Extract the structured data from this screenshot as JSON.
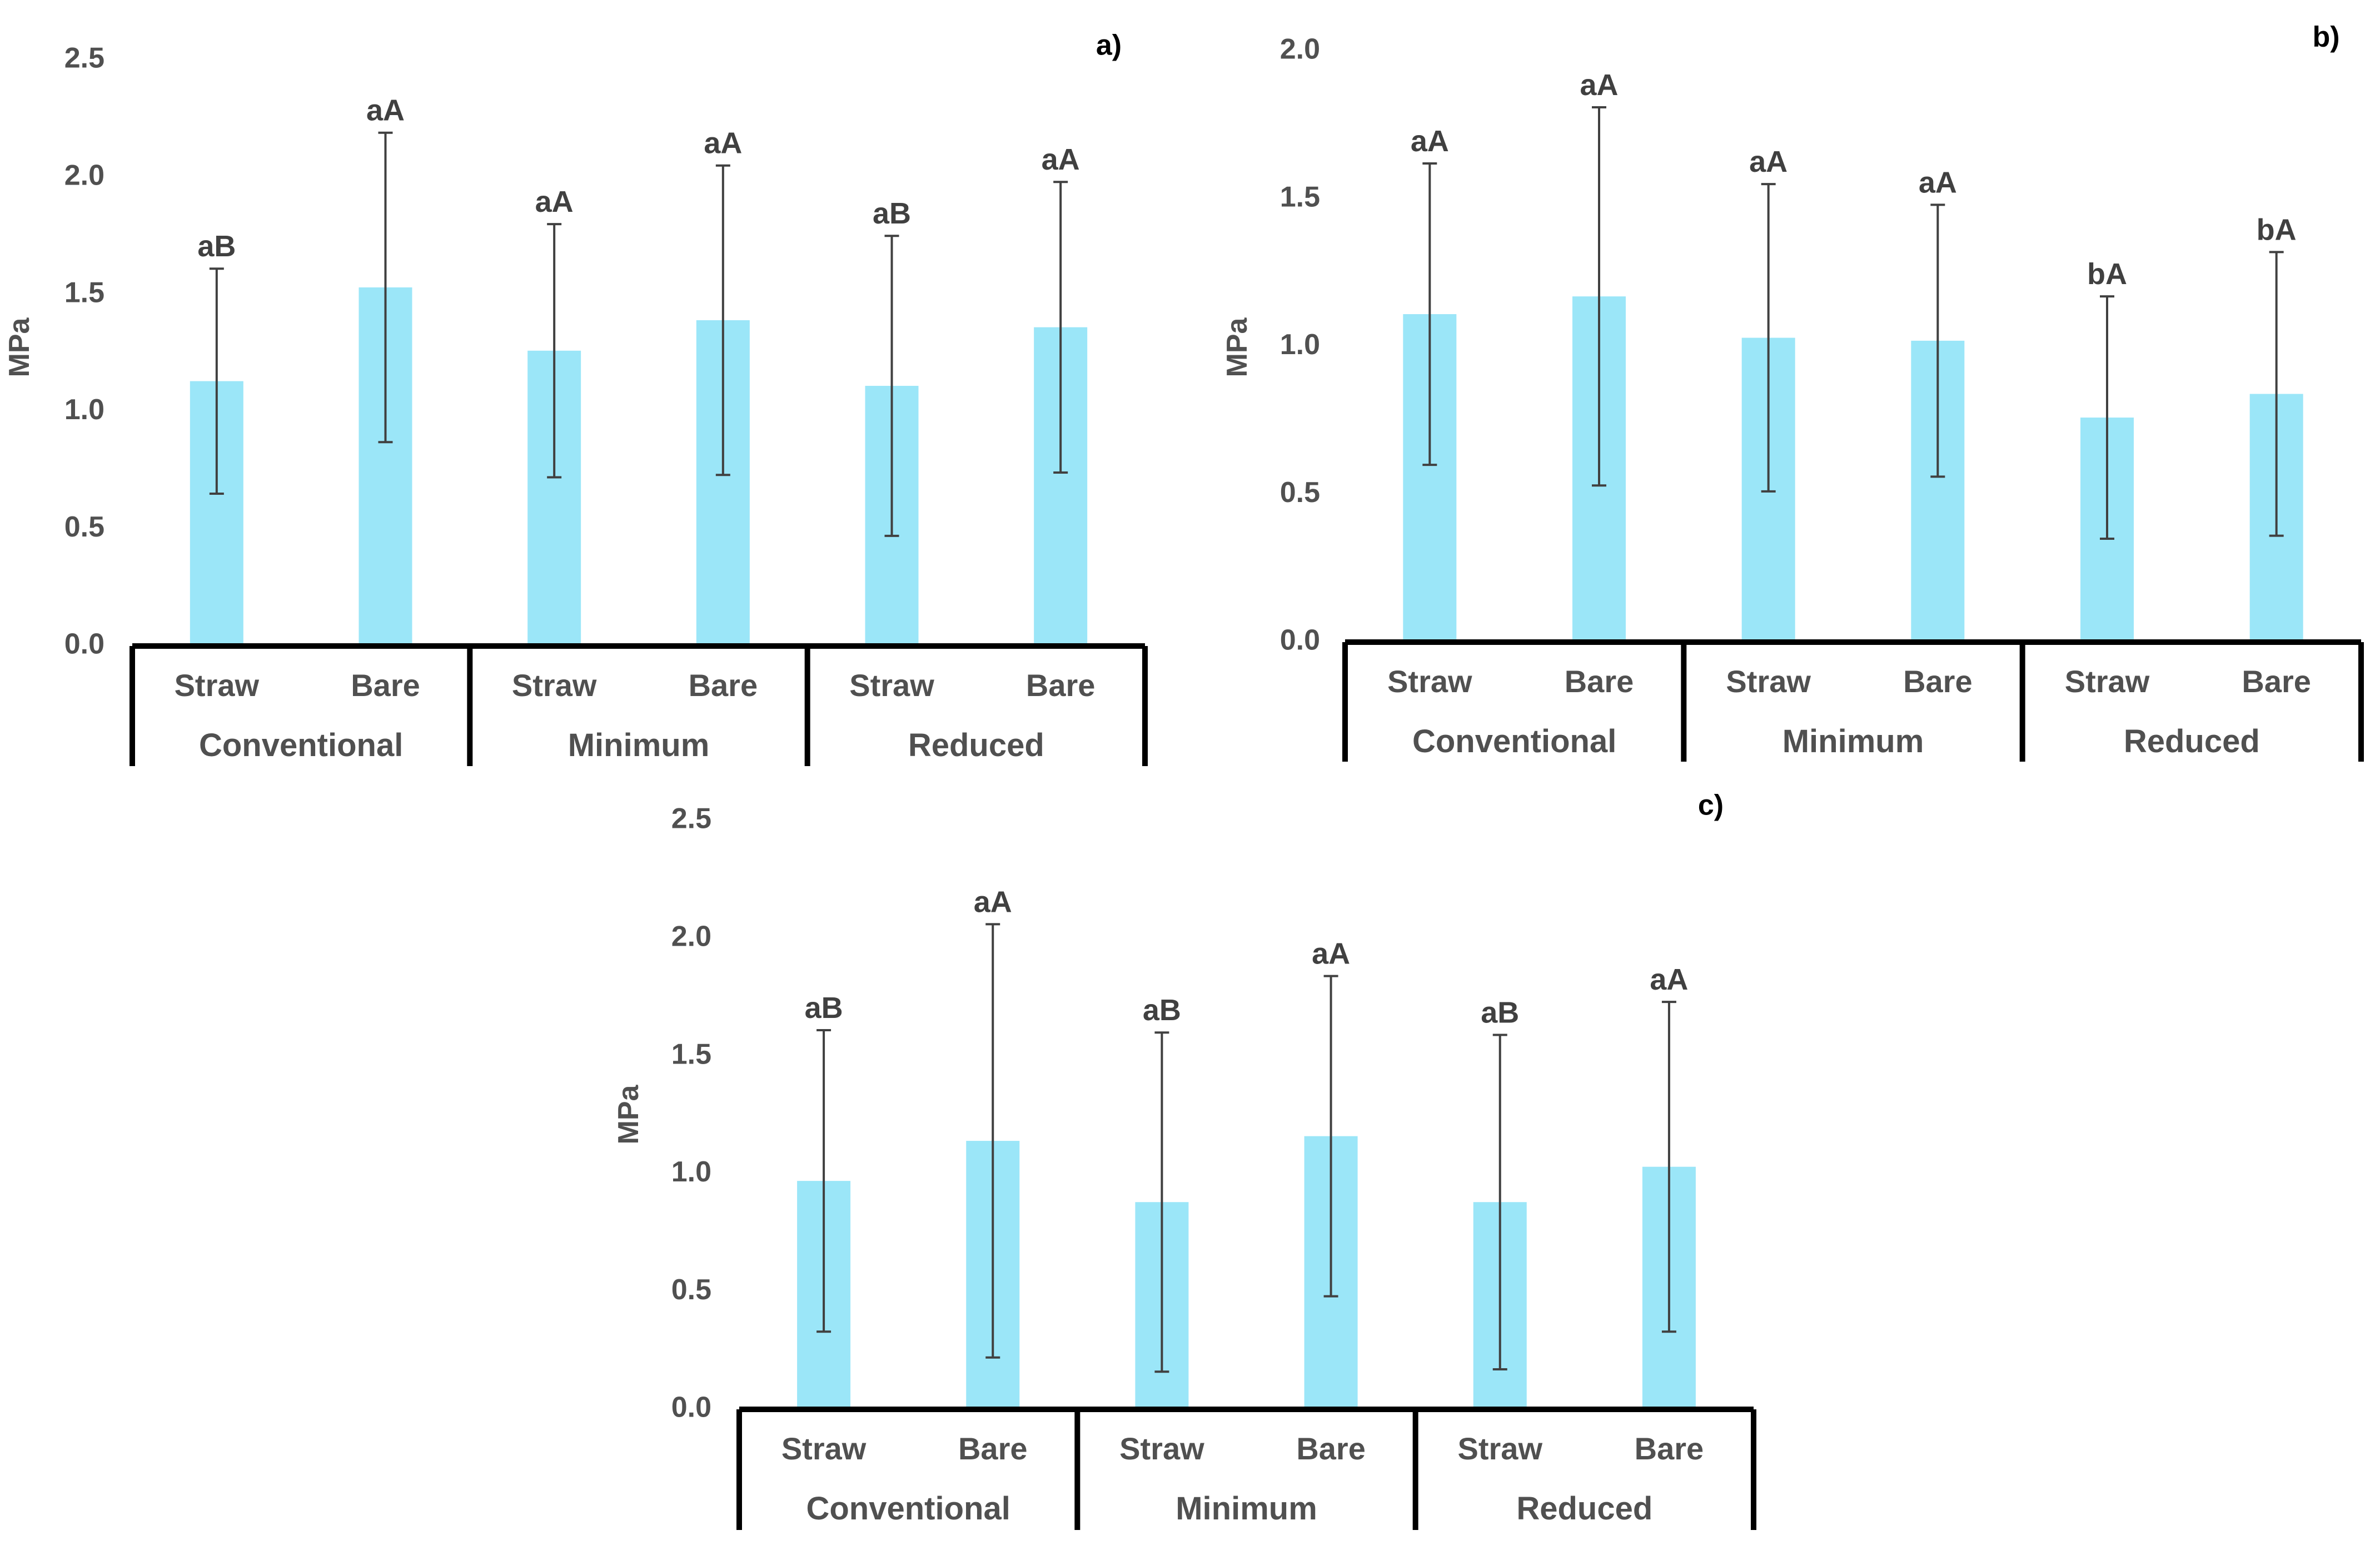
{
  "colors": {
    "bar": "#9be6f8",
    "axis": "#000000",
    "error": "#404040",
    "text": "#505050"
  },
  "chart_data": [
    {
      "type": "bar",
      "panel": "a)",
      "ylabel": "MPa",
      "ylim": [
        0,
        2.5
      ],
      "yticks": [
        "0.0",
        "0.5",
        "1.0",
        "1.5",
        "2.0",
        "2.5"
      ],
      "groups": [
        "Conventional",
        "Minimum",
        "Reduced"
      ],
      "categories": [
        "Straw",
        "Bare",
        "Straw",
        "Bare",
        "Straw",
        "Bare"
      ],
      "values": [
        1.13,
        1.53,
        1.26,
        1.39,
        1.11,
        1.36
      ],
      "error": [
        0.48,
        0.66,
        0.54,
        0.66,
        0.64,
        0.62
      ],
      "labels": [
        "aB",
        "aA",
        "aA",
        "aA",
        "aB",
        "aA"
      ]
    },
    {
      "type": "bar",
      "panel": "b)",
      "ylabel": "MPa",
      "ylim": [
        0,
        2.0
      ],
      "yticks": [
        "0.0",
        "0.5",
        "1.0",
        "1.5",
        "2.0"
      ],
      "groups": [
        "Conventional",
        "Minimum",
        "Reduced"
      ],
      "categories": [
        "Straw",
        "Bare",
        "Straw",
        "Bare",
        "Straw",
        "Bare"
      ],
      "values": [
        1.11,
        1.17,
        1.03,
        1.02,
        0.76,
        0.84
      ],
      "error": [
        0.51,
        0.64,
        0.52,
        0.46,
        0.41,
        0.48
      ],
      "labels": [
        "aA",
        "aA",
        "aA",
        "aA",
        "bA",
        "bA"
      ]
    },
    {
      "type": "bar",
      "panel": "c)",
      "ylabel": "MPa",
      "ylim": [
        0,
        2.5
      ],
      "yticks": [
        "0.0",
        "0.5",
        "1.0",
        "1.5",
        "2.0",
        "2.5"
      ],
      "groups": [
        "Conventional",
        "Minimum",
        "Reduced"
      ],
      "categories": [
        "Straw",
        "Bare",
        "Straw",
        "Bare",
        "Straw",
        "Bare"
      ],
      "values": [
        0.97,
        1.14,
        0.88,
        1.16,
        0.88,
        1.03
      ],
      "error": [
        0.64,
        0.92,
        0.72,
        0.68,
        0.71,
        0.7
      ],
      "labels": [
        "aB",
        "aA",
        "aB",
        "aA",
        "aB",
        "aA"
      ]
    }
  ]
}
